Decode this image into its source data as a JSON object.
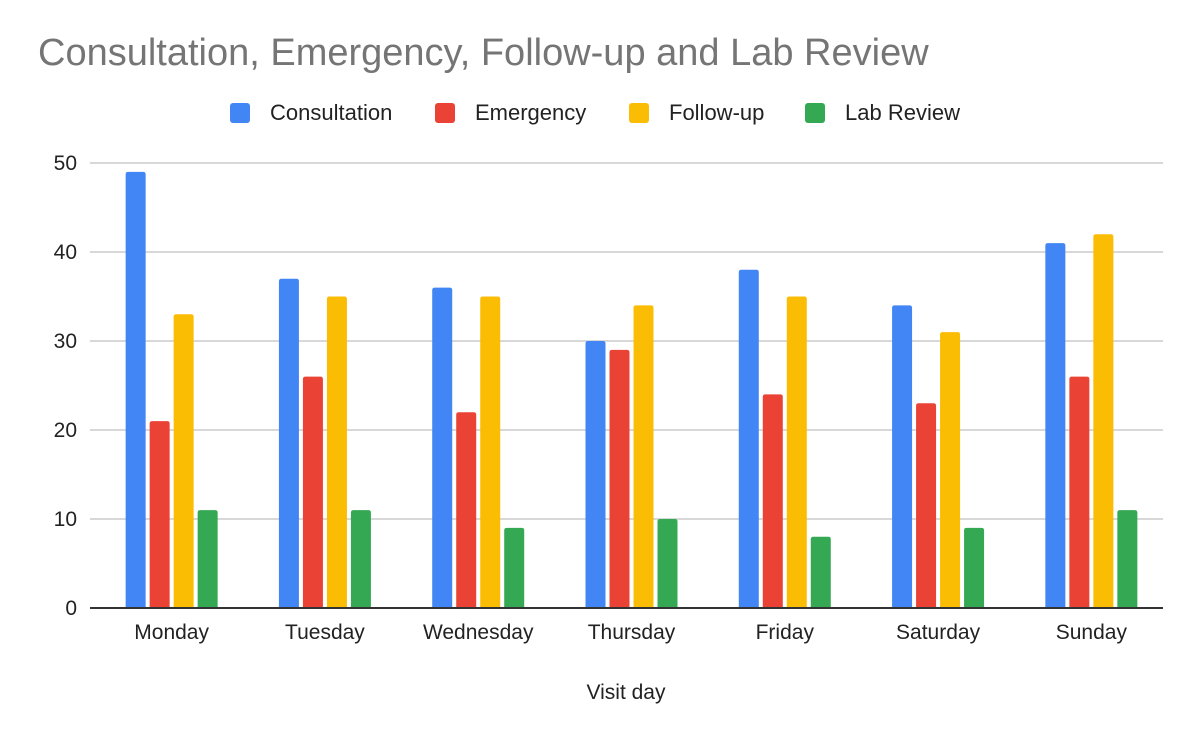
{
  "chart_data": {
    "type": "bar",
    "title": "Consultation, Emergency, Follow-up and Lab Review",
    "xlabel": "Visit day",
    "ylabel": "",
    "ylim": [
      0,
      50
    ],
    "yticks": [
      "0",
      "10",
      "20",
      "30",
      "40",
      "50"
    ],
    "grid": true,
    "legend_position": "top",
    "categories": [
      "Monday",
      "Tuesday",
      "Wednesday",
      "Thursday",
      "Friday",
      "Saturday",
      "Sunday"
    ],
    "series": [
      {
        "name": "Consultation",
        "color": "#4285f4",
        "values": [
          49,
          37,
          36,
          30,
          38,
          34,
          41
        ]
      },
      {
        "name": "Emergency",
        "color": "#ea4335",
        "values": [
          21,
          26,
          22,
          29,
          24,
          23,
          26
        ]
      },
      {
        "name": "Follow-up",
        "color": "#fbbc04",
        "values": [
          33,
          35,
          35,
          34,
          35,
          31,
          42
        ]
      },
      {
        "name": "Lab Review",
        "color": "#34a853",
        "values": [
          11,
          11,
          9,
          10,
          8,
          9,
          11
        ]
      }
    ]
  }
}
